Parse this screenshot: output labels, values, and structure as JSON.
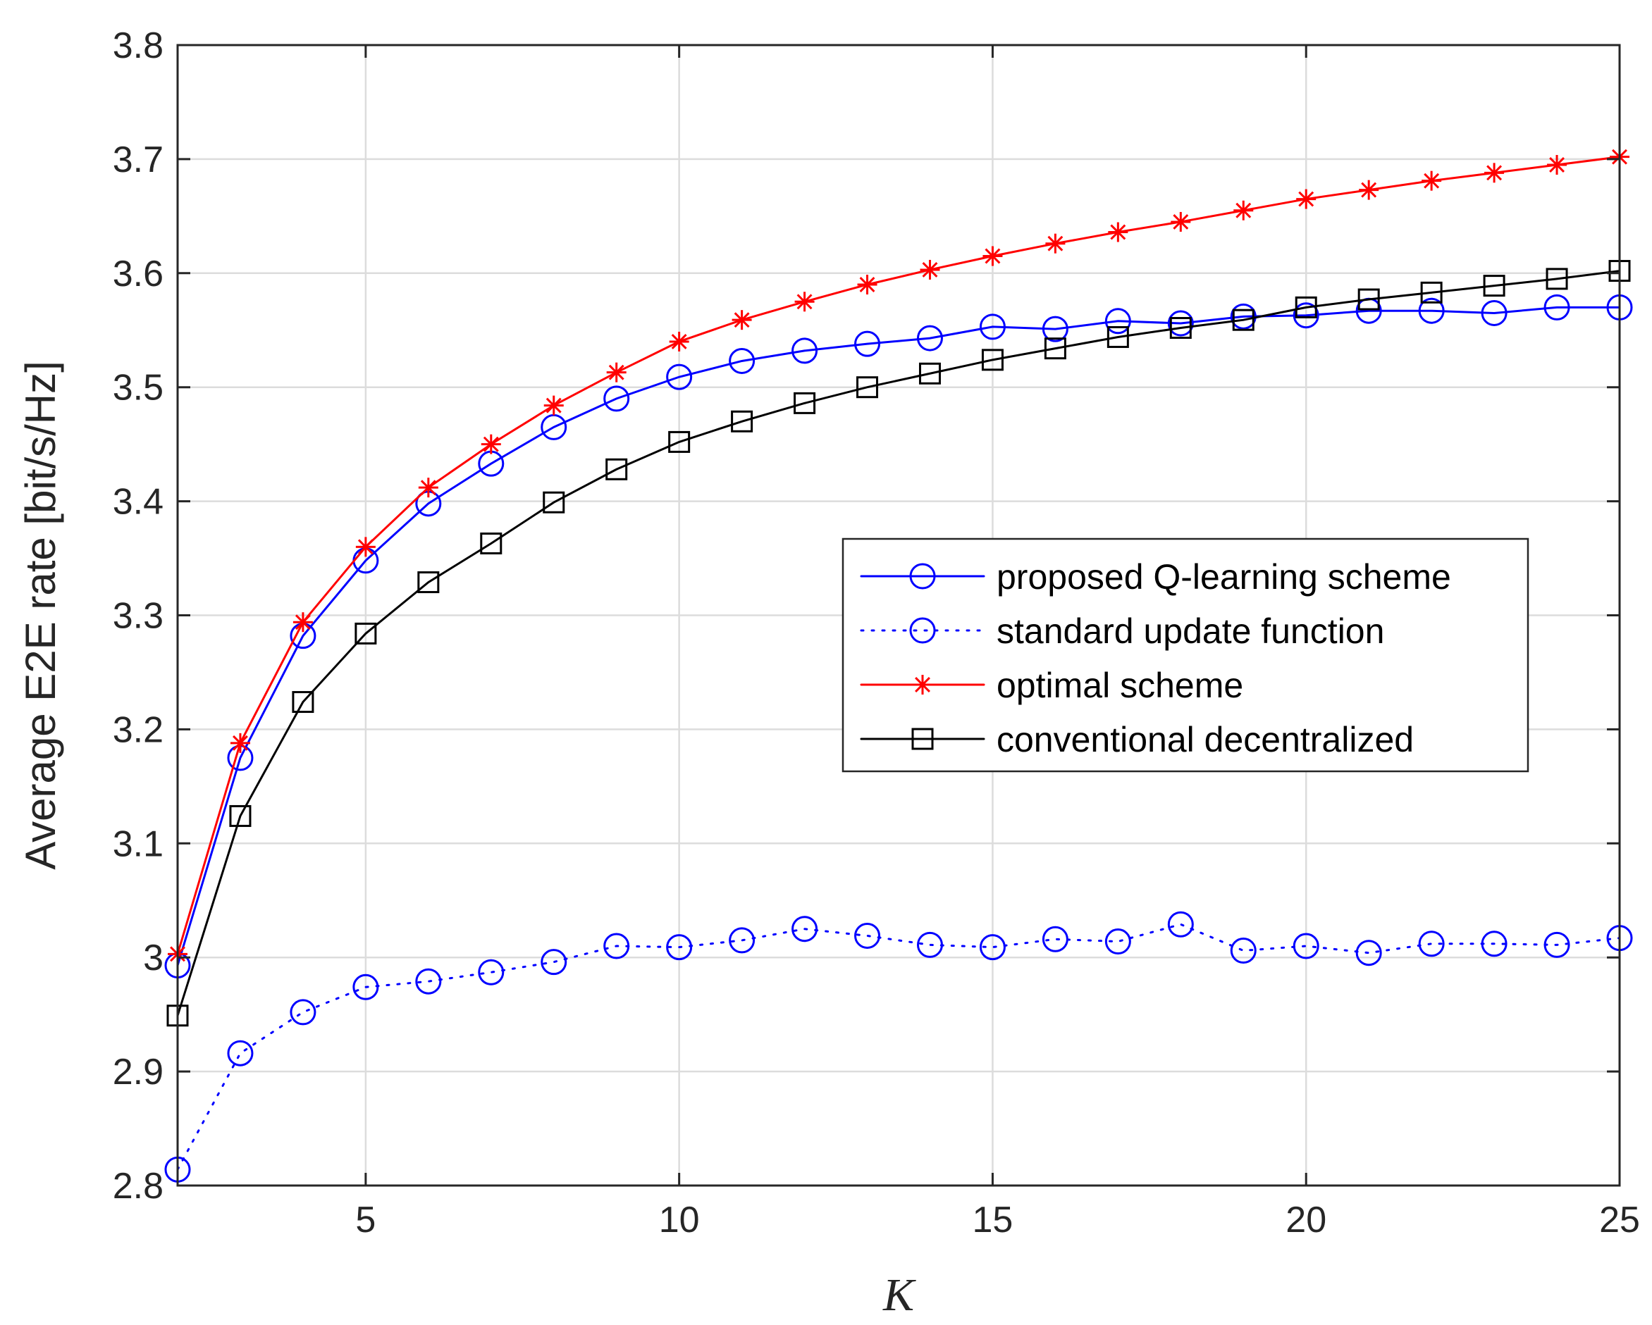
{
  "chart_data": {
    "type": "line",
    "xlabel": "K",
    "ylabel": "Average E2E rate [bit/s/Hz]",
    "xlim": [
      2,
      25
    ],
    "ylim": [
      2.8,
      3.8
    ],
    "x_ticks": [
      5,
      10,
      15,
      20,
      25
    ],
    "y_ticks": [
      2.8,
      2.9,
      3.0,
      3.1,
      3.2,
      3.3,
      3.4,
      3.5,
      3.6,
      3.7,
      3.8
    ],
    "x_tick_labels": [
      "5",
      "10",
      "15",
      "20",
      "25"
    ],
    "y_tick_labels": [
      "2.8",
      "2.9",
      "3",
      "3.1",
      "3.2",
      "3.3",
      "3.4",
      "3.5",
      "3.6",
      "3.7",
      "3.8"
    ],
    "grid": true,
    "legend_position": "right",
    "x": [
      2,
      3,
      4,
      5,
      6,
      7,
      8,
      9,
      10,
      11,
      12,
      13,
      14,
      15,
      16,
      17,
      18,
      19,
      20,
      21,
      22,
      23,
      24,
      25
    ],
    "series": [
      {
        "name": "proposed Q-learning scheme",
        "color": "#0000ff",
        "line_style": "solid",
        "marker": "circle",
        "values": [
          2.993,
          3.175,
          3.282,
          3.348,
          3.398,
          3.433,
          3.465,
          3.49,
          3.509,
          3.523,
          3.532,
          3.538,
          3.543,
          3.553,
          3.551,
          3.558,
          3.556,
          3.562,
          3.563,
          3.567,
          3.567,
          3.565,
          3.57,
          3.57
        ]
      },
      {
        "name": "standard update function",
        "color": "#0000ff",
        "line_style": "dotted",
        "marker": "circle",
        "values": [
          2.814,
          2.916,
          2.952,
          2.974,
          2.979,
          2.987,
          2.996,
          3.01,
          3.009,
          3.015,
          3.025,
          3.019,
          3.011,
          3.009,
          3.016,
          3.014,
          3.029,
          3.006,
          3.01,
          3.004,
          3.012,
          3.012,
          3.011,
          3.017
        ]
      },
      {
        "name": "optimal scheme",
        "color": "#ff0000",
        "line_style": "solid",
        "marker": "star",
        "values": [
          3.003,
          3.188,
          3.294,
          3.36,
          3.412,
          3.45,
          3.484,
          3.513,
          3.54,
          3.559,
          3.575,
          3.59,
          3.603,
          3.615,
          3.626,
          3.636,
          3.645,
          3.655,
          3.665,
          3.673,
          3.681,
          3.688,
          3.695,
          3.702
        ]
      },
      {
        "name": "conventional decentralized",
        "color": "#000000",
        "line_style": "solid",
        "marker": "square",
        "values": [
          2.949,
          3.124,
          3.224,
          3.284,
          3.329,
          3.363,
          3.399,
          3.428,
          3.452,
          3.47,
          3.486,
          3.5,
          3.512,
          3.524,
          3.534,
          3.544,
          3.552,
          3.559,
          3.57,
          3.577,
          3.583,
          3.589,
          3.595,
          3.602
        ]
      }
    ]
  }
}
